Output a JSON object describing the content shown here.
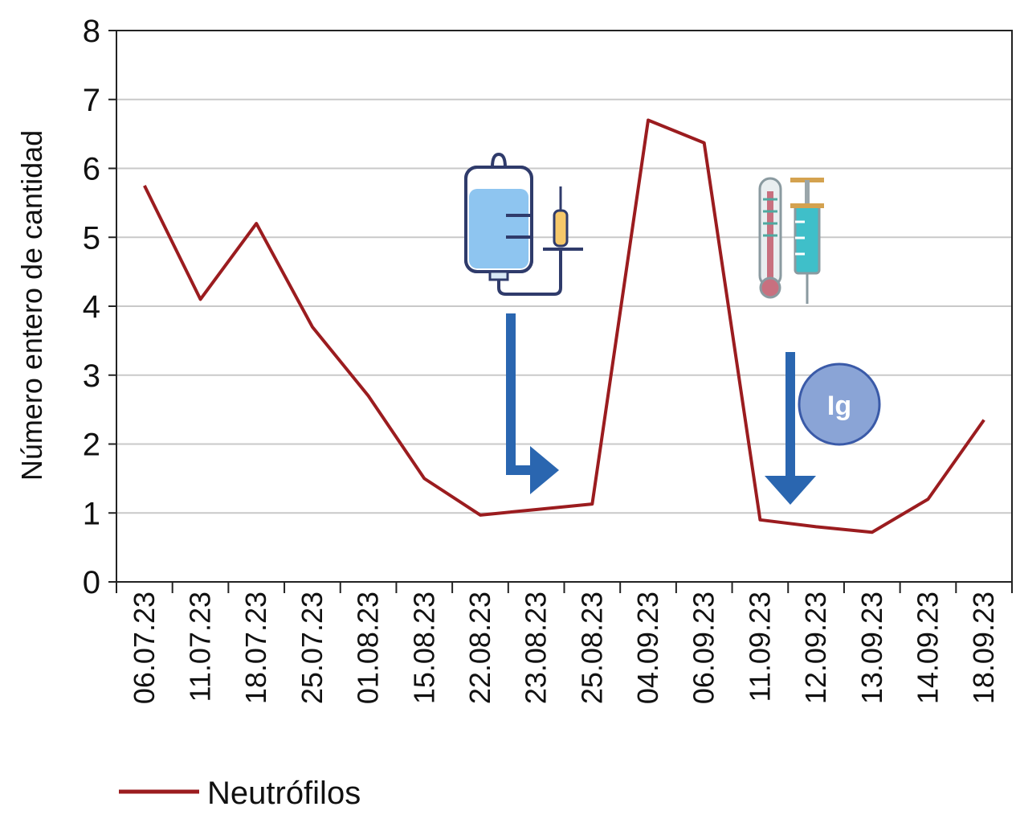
{
  "chart_data": {
    "type": "line",
    "ylabel": "Número entero de cantidad",
    "xlabel": "",
    "ylim": [
      0,
      8
    ],
    "yticks": [
      0,
      1,
      2,
      3,
      4,
      5,
      6,
      7,
      8
    ],
    "grid": true,
    "categories": [
      "06.07.23",
      "11.07.23",
      "18.07.23",
      "25.07.23",
      "01.08.23",
      "15.08.23",
      "22.08.23",
      "23.08.23",
      "25.08.23",
      "04.09.23",
      "06.09.23",
      "11.09.23",
      "12.09.23",
      "13.09.23",
      "14.09.23",
      "18.09.23"
    ],
    "series": [
      {
        "name": "Neutrófilos",
        "color": "#9b1c1f",
        "values": [
          5.75,
          4.1,
          5.2,
          3.7,
          2.7,
          1.5,
          0.97,
          1.05,
          1.13,
          6.7,
          6.37,
          0.9,
          0.8,
          0.72,
          1.2,
          2.35
        ]
      }
    ],
    "legend_position": "bottom-left",
    "annotations": [
      {
        "icon": "iv-drip-syringe-icon",
        "category": "23.08.23",
        "arrow": "down-right"
      },
      {
        "icon": "thermometer-syringe-icon",
        "category": "12.09.23",
        "arrow": "down"
      },
      {
        "badge": "Ig",
        "category": "13.09.23",
        "color": "#8aa4d6"
      }
    ]
  }
}
